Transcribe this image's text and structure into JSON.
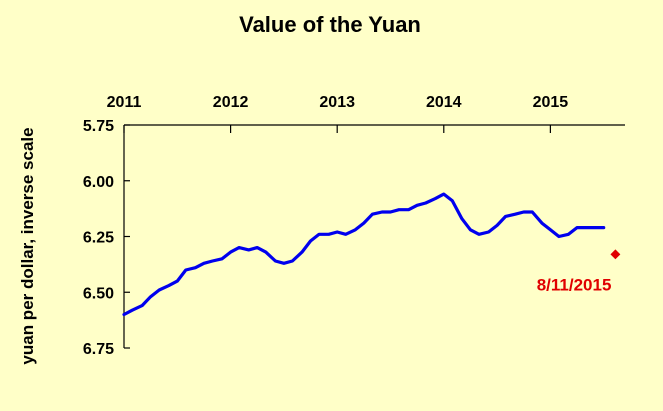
{
  "chart_data": {
    "type": "line",
    "title": "Value of the Yuan",
    "ylabel": "yuan per dollar, inverse scale",
    "xlabel": "",
    "x_axis_position": "top",
    "y_inverted": true,
    "ylim": [
      5.75,
      6.75
    ],
    "yticks": [
      "5.75",
      "6.00",
      "6.25",
      "6.50",
      "6.75"
    ],
    "xlim": [
      2011.0,
      2015.7
    ],
    "xticks": [
      "2011",
      "2012",
      "2013",
      "2014",
      "2015"
    ],
    "series": [
      {
        "color": "#0000ee",
        "x": [
          2011.0,
          2011.08,
          2011.17,
          2011.25,
          2011.33,
          2011.42,
          2011.5,
          2011.58,
          2011.67,
          2011.75,
          2011.83,
          2011.92,
          2012.0,
          2012.08,
          2012.17,
          2012.25,
          2012.33,
          2012.42,
          2012.5,
          2012.58,
          2012.67,
          2012.75,
          2012.83,
          2012.92,
          2013.0,
          2013.08,
          2013.17,
          2013.25,
          2013.33,
          2013.42,
          2013.5,
          2013.58,
          2013.67,
          2013.75,
          2013.83,
          2013.92,
          2014.0,
          2014.08,
          2014.17,
          2014.25,
          2014.33,
          2014.42,
          2014.5,
          2014.58,
          2014.67,
          2014.75,
          2014.83,
          2014.92,
          2015.0,
          2015.08,
          2015.17,
          2015.25,
          2015.33,
          2015.42,
          2015.5
        ],
        "y": [
          6.6,
          6.58,
          6.56,
          6.52,
          6.49,
          6.47,
          6.45,
          6.4,
          6.39,
          6.37,
          6.36,
          6.35,
          6.32,
          6.3,
          6.31,
          6.3,
          6.32,
          6.36,
          6.37,
          6.36,
          6.32,
          6.27,
          6.24,
          6.24,
          6.23,
          6.24,
          6.22,
          6.19,
          6.15,
          6.14,
          6.14,
          6.13,
          6.13,
          6.11,
          6.1,
          6.08,
          6.06,
          6.09,
          6.17,
          6.22,
          6.24,
          6.23,
          6.2,
          6.16,
          6.15,
          6.14,
          6.14,
          6.19,
          6.22,
          6.25,
          6.24,
          6.21,
          6.21,
          6.21,
          6.21
        ]
      }
    ],
    "annotations": [
      {
        "x": 2015.61,
        "y": 6.33,
        "text": "8/11/2015",
        "color": "#e00000"
      }
    ],
    "grid": false,
    "legend": "none"
  }
}
